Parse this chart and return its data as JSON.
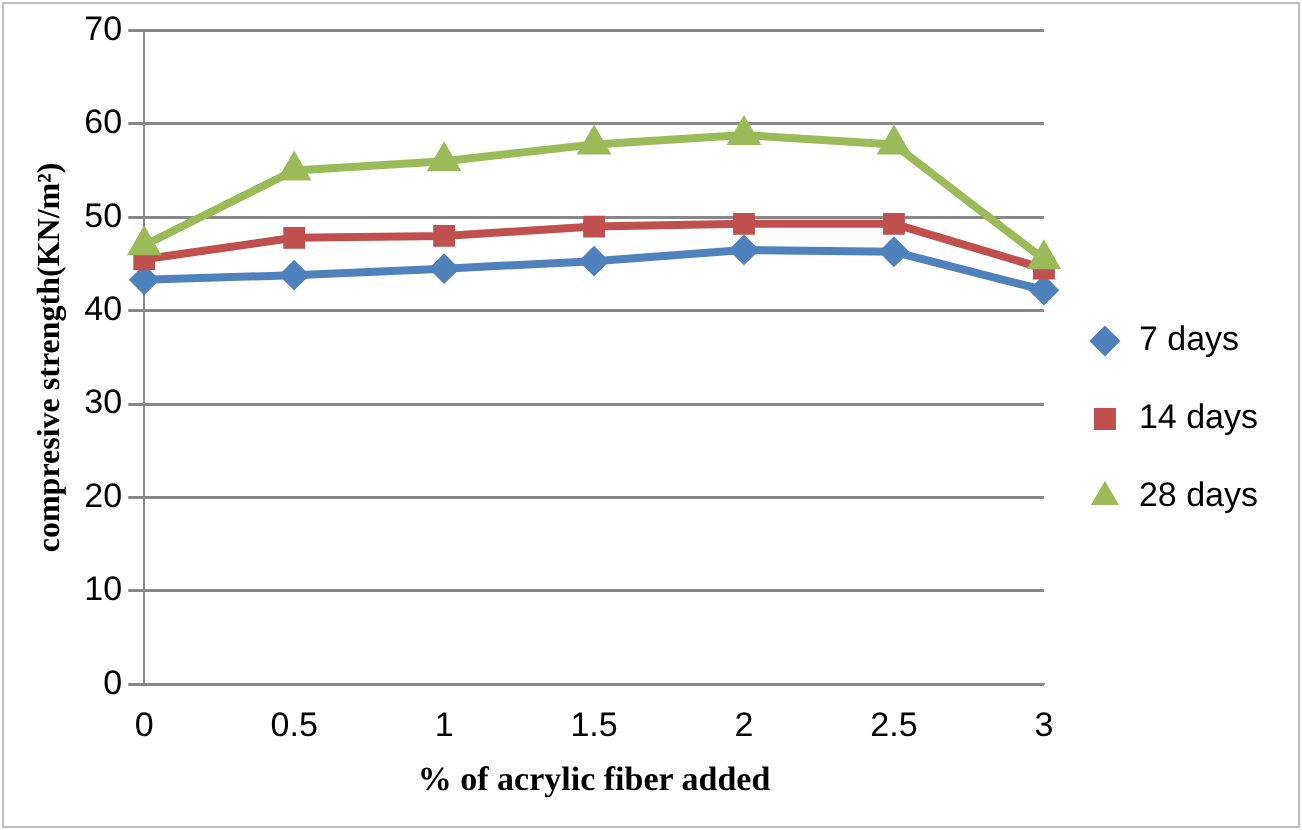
{
  "chart_data": {
    "type": "line",
    "xlabel": "% of acrylic fiber added",
    "ylabel": "compresive strength(KN/m²)",
    "categories": [
      "0",
      "0.5",
      "1",
      "1.5",
      "2",
      "2.5",
      "3"
    ],
    "series": [
      {
        "name": "7 days",
        "color": "#4f81bd",
        "marker": "diamond",
        "values": [
          43.3,
          43.8,
          44.5,
          45.3,
          46.5,
          46.3,
          42.2
        ]
      },
      {
        "name": "14 days",
        "color": "#c0504d",
        "marker": "square",
        "values": [
          45.5,
          47.8,
          48,
          49,
          49.3,
          49.3,
          44.5
        ]
      },
      {
        "name": "28 days",
        "color": "#9bbb59",
        "marker": "triangle",
        "values": [
          47,
          55,
          56,
          57.8,
          58.8,
          57.8,
          45.5
        ]
      }
    ],
    "ylim": [
      0,
      70
    ],
    "yticks": [
      0,
      10,
      20,
      30,
      40,
      50,
      60,
      70
    ],
    "grid": "y",
    "legend": "right",
    "line_style": "solid"
  }
}
